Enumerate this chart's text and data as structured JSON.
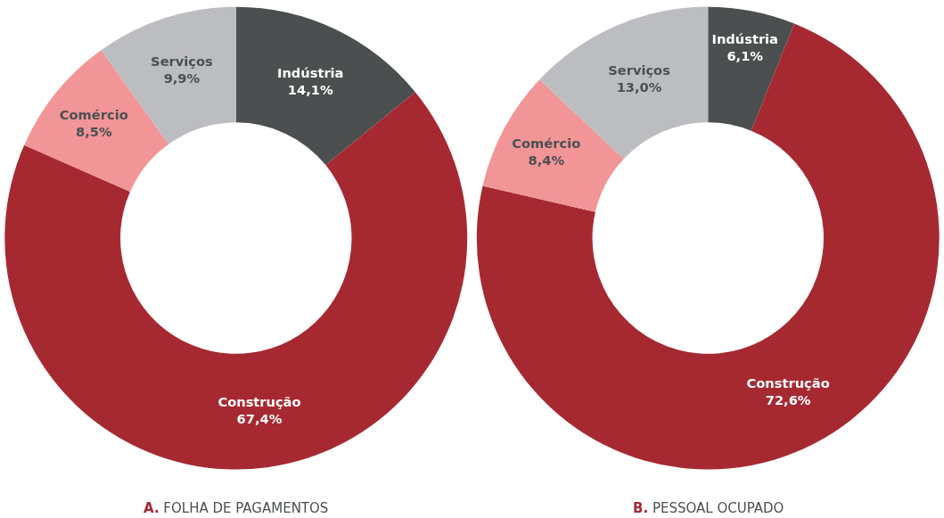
{
  "chart_data": [
    {
      "type": "donut",
      "title": "A. FOLHA DE PAGAMENTOS",
      "categories": [
        "Indústria",
        "Construção",
        "Comércio",
        "Serviços"
      ],
      "values": [
        14.1,
        67.4,
        8.5,
        9.9
      ],
      "value_labels": [
        "14,1%",
        "67,4%",
        "8,5%",
        "9,9%"
      ],
      "colors": [
        "#4b4f50",
        "#a62931",
        "#f29597",
        "#bcbdc0"
      ]
    },
    {
      "type": "donut",
      "title": "B. PESSOAL OCUPADO",
      "categories": [
        "Indústria",
        "Construção",
        "Comércio",
        "Serviços"
      ],
      "values": [
        6.1,
        72.6,
        8.4,
        13.0
      ],
      "value_labels": [
        "6,1%",
        "72,6%",
        "8,4%",
        "13,0%"
      ],
      "colors": [
        "#4b4f50",
        "#a62931",
        "#f29597",
        "#bcbdc0"
      ]
    }
  ]
}
